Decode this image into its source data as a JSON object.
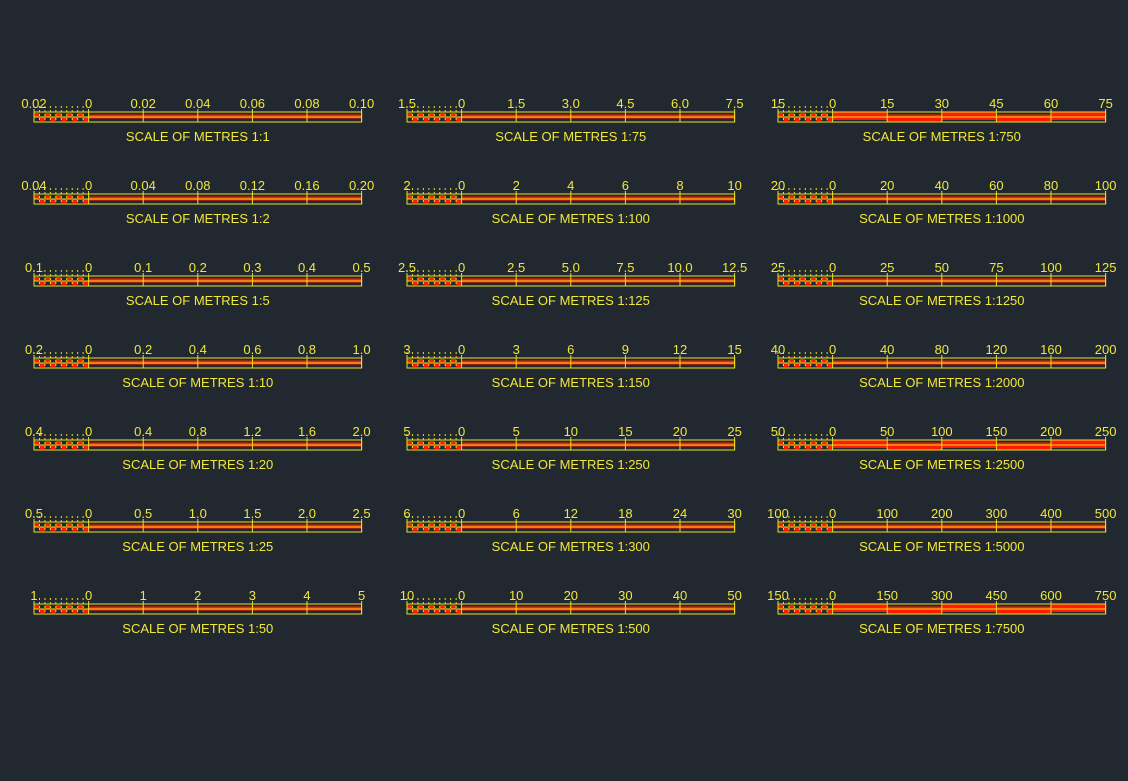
{
  "colors": {
    "background": "#212830",
    "line": "#e8e020",
    "fill": "#ff1a00",
    "text": "#f0e83a"
  },
  "columns": [
    {
      "bars": [
        {
          "ticks": [
            "0.02",
            "0",
            "0.02",
            "0.04",
            "0.06",
            "0.08",
            "0.10"
          ],
          "caption": "SCALE OF METRES 1:1",
          "style": "outline"
        },
        {
          "ticks": [
            "0.04",
            "0",
            "0.04",
            "0.08",
            "0.12",
            "0.16",
            "0.20"
          ],
          "caption": "SCALE OF METRES 1:2",
          "style": "outline"
        },
        {
          "ticks": [
            "0.1",
            "0",
            "0.1",
            "0.2",
            "0.3",
            "0.4",
            "0.5"
          ],
          "caption": "SCALE OF METRES 1:5",
          "style": "outline"
        },
        {
          "ticks": [
            "0.2",
            "0",
            "0.2",
            "0.4",
            "0.6",
            "0.8",
            "1.0"
          ],
          "caption": "SCALE OF METRES 1:10",
          "style": "outline"
        },
        {
          "ticks": [
            "0.4",
            "0",
            "0.4",
            "0.8",
            "1.2",
            "1.6",
            "2.0"
          ],
          "caption": "SCALE OF METRES 1:20",
          "style": "outline"
        },
        {
          "ticks": [
            "0.5",
            "0",
            "0.5",
            "1.0",
            "1.5",
            "2.0",
            "2.5"
          ],
          "caption": "SCALE OF METRES 1:25",
          "style": "outline"
        },
        {
          "ticks": [
            "1",
            "0",
            "1",
            "2",
            "3",
            "4",
            "5"
          ],
          "caption": "SCALE OF METRES 1:50",
          "style": "outline"
        }
      ]
    },
    {
      "bars": [
        {
          "ticks": [
            "1.5",
            "0",
            "1.5",
            "3.0",
            "4.5",
            "6.0",
            "7.5"
          ],
          "caption": "SCALE OF METRES 1:75",
          "style": "outline"
        },
        {
          "ticks": [
            "2",
            "0",
            "2",
            "4",
            "6",
            "8",
            "10"
          ],
          "caption": "SCALE OF METRES 1:100",
          "style": "outline"
        },
        {
          "ticks": [
            "2.5",
            "0",
            "2.5",
            "5.0",
            "7.5",
            "10.0",
            "12.5"
          ],
          "caption": "SCALE OF METRES 1:125",
          "style": "outline"
        },
        {
          "ticks": [
            "3",
            "0",
            "3",
            "6",
            "9",
            "12",
            "15"
          ],
          "caption": "SCALE OF METRES 1:150",
          "style": "outline"
        },
        {
          "ticks": [
            "5",
            "0",
            "5",
            "10",
            "15",
            "20",
            "25"
          ],
          "caption": "SCALE OF METRES 1:250",
          "style": "outline"
        },
        {
          "ticks": [
            "6",
            "0",
            "6",
            "12",
            "18",
            "24",
            "30"
          ],
          "caption": "SCALE OF METRES 1:300",
          "style": "outline"
        },
        {
          "ticks": [
            "10",
            "0",
            "10",
            "20",
            "30",
            "40",
            "50"
          ],
          "caption": "SCALE OF METRES 1:500",
          "style": "outline"
        }
      ]
    },
    {
      "bars": [
        {
          "ticks": [
            "15",
            "0",
            "15",
            "30",
            "45",
            "60",
            "75"
          ],
          "caption": "SCALE OF METRES 1:750",
          "style": "solid"
        },
        {
          "ticks": [
            "20",
            "0",
            "20",
            "40",
            "60",
            "80",
            "100"
          ],
          "caption": "SCALE OF METRES 1:1000",
          "style": "outline"
        },
        {
          "ticks": [
            "25",
            "0",
            "25",
            "50",
            "75",
            "100",
            "125"
          ],
          "caption": "SCALE OF METRES 1:1250",
          "style": "outline"
        },
        {
          "ticks": [
            "40",
            "0",
            "40",
            "80",
            "120",
            "160",
            "200"
          ],
          "caption": "SCALE OF METRES 1:2000",
          "style": "outline"
        },
        {
          "ticks": [
            "50",
            "0",
            "50",
            "100",
            "150",
            "200",
            "250"
          ],
          "caption": "SCALE OF METRES 1:2500",
          "style": "solid"
        },
        {
          "ticks": [
            "100",
            "0",
            "100",
            "200",
            "300",
            "400",
            "500"
          ],
          "caption": "SCALE OF METRES 1:5000",
          "style": "outline"
        },
        {
          "ticks": [
            "150",
            "0",
            "150",
            "300",
            "450",
            "600",
            "750"
          ],
          "caption": "SCALE OF METRES 1:7500",
          "style": "solid"
        }
      ]
    }
  ]
}
